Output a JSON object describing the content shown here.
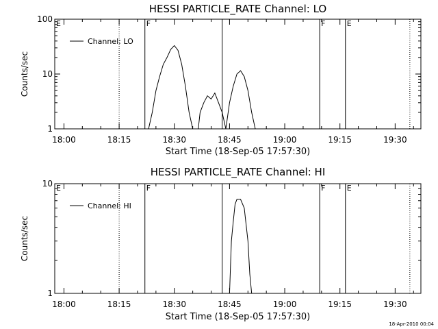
{
  "footer": "18-Apr-2010 00:04",
  "chart_data": [
    {
      "type": "line",
      "title": "HESSI PARTICLE_RATE Channel: LO",
      "xlabel": "Start Time (18-Sep-05 17:57:30)",
      "ylabel": "Counts/sec",
      "yscale": "log",
      "xlim": [
        "17:57:30",
        "19:37:00"
      ],
      "ylim": [
        1,
        100
      ],
      "xticks": [
        "18:00",
        "18:15",
        "18:30",
        "18:45",
        "19:00",
        "19:15",
        "19:30"
      ],
      "yticks": [
        "1",
        "10",
        "100"
      ],
      "legend": {
        "position": "top-left",
        "entries": [
          "Channel: LO"
        ]
      },
      "series": [
        {
          "name": "Channel: LO",
          "segments": [
            {
              "x": [
                "18:23:00",
                "18:24:00",
                "18:25:00",
                "18:26:00",
                "18:27:00",
                "18:28:00",
                "18:29:00",
                "18:30:00",
                "18:31:00",
                "18:32:00",
                "18:33:00",
                "18:34:00",
                "18:35:00"
              ],
              "y": [
                1.0,
                2.0,
                5.0,
                9.0,
                15.0,
                20.0,
                28.0,
                33.0,
                27.0,
                15.0,
                6.0,
                2.0,
                1.0
              ]
            },
            {
              "x": [
                "18:36:30",
                "18:37:00",
                "18:38:00",
                "18:39:00",
                "18:40:00",
                "18:41:00",
                "18:42:00",
                "18:43:00",
                "18:44:00"
              ],
              "y": [
                1.0,
                2.0,
                3.0,
                4.0,
                3.5,
                4.5,
                3.0,
                2.0,
                1.0
              ]
            },
            {
              "x": [
                "18:44:00",
                "18:45:00",
                "18:46:00",
                "18:47:00",
                "18:48:00",
                "18:49:00",
                "18:50:00",
                "18:51:00",
                "18:52:00"
              ],
              "y": [
                1.0,
                3.0,
                6.0,
                10.0,
                11.5,
                9.0,
                5.0,
                2.0,
                1.0
              ]
            }
          ]
        }
      ],
      "flags": [
        {
          "label": "E",
          "time": "17:57:30",
          "style": "solid"
        },
        {
          "label": "",
          "time": "18:15:00",
          "style": "dotted"
        },
        {
          "label": "F",
          "time": "18:22:00",
          "style": "solid"
        },
        {
          "label": "",
          "time": "18:43:00",
          "style": "solid"
        },
        {
          "label": "F",
          "time": "19:09:30",
          "style": "solid"
        },
        {
          "label": "E",
          "time": "19:16:30",
          "style": "solid"
        },
        {
          "label": "",
          "time": "19:34:00",
          "style": "dotted"
        }
      ]
    },
    {
      "type": "line",
      "title": "HESSI PARTICLE_RATE Channel: HI",
      "xlabel": "Start Time (18-Sep-05 17:57:30)",
      "ylabel": "Counts/sec",
      "yscale": "log",
      "xlim": [
        "17:57:30",
        "19:37:00"
      ],
      "ylim": [
        1,
        10
      ],
      "xticks": [
        "18:00",
        "18:15",
        "18:30",
        "18:45",
        "19:00",
        "19:15",
        "19:30"
      ],
      "yticks": [
        "1",
        "10"
      ],
      "legend": {
        "position": "top-left",
        "entries": [
          "Channel: HI"
        ]
      },
      "series": [
        {
          "name": "Channel: HI",
          "segments": [
            {
              "x": [
                "18:45:00",
                "18:45:30",
                "18:46:00",
                "18:46:30",
                "18:47:00",
                "18:48:00",
                "18:49:00",
                "18:50:00",
                "18:50:30",
                "18:51:00"
              ],
              "y": [
                1.0,
                3.0,
                4.5,
                6.5,
                7.2,
                7.2,
                6.0,
                3.0,
                1.5,
                1.0
              ]
            }
          ]
        }
      ],
      "flags": [
        {
          "label": "E",
          "time": "17:57:30",
          "style": "solid"
        },
        {
          "label": "",
          "time": "18:15:00",
          "style": "dotted"
        },
        {
          "label": "F",
          "time": "18:22:00",
          "style": "solid"
        },
        {
          "label": "",
          "time": "18:43:00",
          "style": "solid"
        },
        {
          "label": "F",
          "time": "19:09:30",
          "style": "solid"
        },
        {
          "label": "E",
          "time": "19:16:30",
          "style": "solid"
        },
        {
          "label": "",
          "time": "19:34:00",
          "style": "dotted"
        }
      ]
    }
  ]
}
